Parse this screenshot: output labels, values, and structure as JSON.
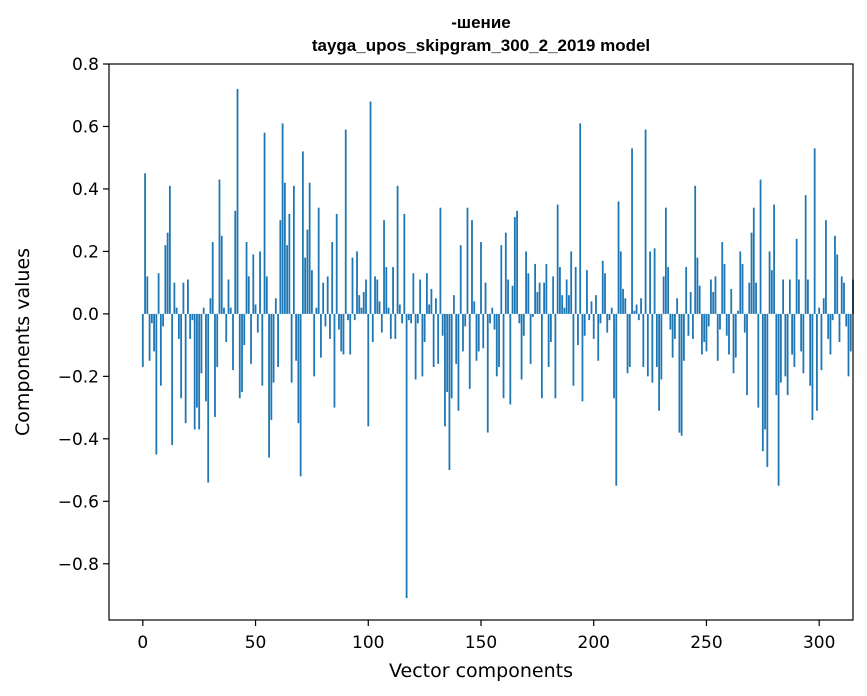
{
  "chart_data": {
    "type": "bar",
    "title_line1": "-шение",
    "title_line2": "tayga_upos_skipgram_300_2_2019 model",
    "xlabel": "Vector components",
    "ylabel": "Components values",
    "xlim": [
      -15,
      315
    ],
    "ylim": [
      -0.98,
      0.8
    ],
    "xticks": [
      0,
      50,
      100,
      150,
      200,
      250,
      300
    ],
    "xtick_labels": [
      "0",
      "50",
      "100",
      "150",
      "200",
      "250",
      "300"
    ],
    "yticks": [
      -0.8,
      -0.6,
      -0.4,
      -0.2,
      0.0,
      0.2,
      0.4,
      0.6,
      0.8
    ],
    "ytick_labels": [
      "−0.8",
      "−0.6",
      "−0.4",
      "−0.2",
      "0.0",
      "0.2",
      "0.4",
      "0.6",
      "0.8"
    ],
    "bar_color": "#1f77b4",
    "values": [
      -0.17,
      0.45,
      0.12,
      -0.15,
      -0.03,
      -0.12,
      -0.45,
      0.13,
      -0.23,
      -0.04,
      0.22,
      0.26,
      0.41,
      -0.42,
      0.1,
      0.02,
      -0.08,
      -0.27,
      0.1,
      -0.35,
      0.11,
      -0.08,
      -0.02,
      -0.37,
      -0.3,
      -0.37,
      -0.19,
      0.02,
      -0.28,
      -0.54,
      0.05,
      0.23,
      -0.33,
      -0.17,
      0.43,
      0.25,
      0.02,
      -0.09,
      0.11,
      0.02,
      -0.18,
      0.33,
      0.72,
      -0.27,
      -0.25,
      -0.1,
      0.23,
      0.12,
      -0.16,
      0.19,
      0.03,
      -0.06,
      0.2,
      -0.23,
      0.58,
      0.12,
      -0.46,
      -0.34,
      -0.22,
      0.05,
      -0.17,
      0.3,
      0.61,
      0.42,
      0.22,
      0.32,
      -0.22,
      0.41,
      -0.15,
      -0.35,
      -0.52,
      0.52,
      0.18,
      0.27,
      0.42,
      0.14,
      -0.2,
      0.02,
      0.34,
      -0.14,
      0.1,
      -0.04,
      0.12,
      -0.08,
      0.23,
      -0.3,
      0.32,
      -0.05,
      -0.12,
      -0.13,
      0.59,
      -0.02,
      -0.13,
      0.18,
      -0.02,
      0.2,
      0.06,
      0.02,
      0.07,
      0.11,
      -0.36,
      0.68,
      -0.09,
      0.12,
      0.11,
      0.04,
      -0.06,
      0.3,
      0.15,
      0.02,
      -0.08,
      0.15,
      -0.08,
      0.41,
      0.03,
      -0.03,
      0.32,
      -0.91,
      -0.02,
      -0.03,
      0.13,
      -0.21,
      -0.03,
      0.11,
      -0.2,
      -0.09,
      0.13,
      0.03,
      0.08,
      -0.17,
      0.05,
      -0.16,
      0.34,
      -0.07,
      -0.36,
      -0.25,
      -0.5,
      -0.27,
      0.06,
      -0.16,
      -0.31,
      0.22,
      -0.12,
      -0.04,
      0.34,
      -0.24,
      0.3,
      0.04,
      -0.15,
      -0.12,
      0.23,
      -0.11,
      0.1,
      -0.38,
      -0.03,
      0.02,
      -0.05,
      -0.2,
      -0.17,
      0.22,
      -0.27,
      0.26,
      0.11,
      -0.29,
      0.09,
      0.31,
      0.33,
      -0.03,
      -0.21,
      -0.07,
      0.2,
      0.13,
      -0.16,
      -0.01,
      0.16,
      0.07,
      0.1,
      -0.27,
      0.1,
      0.16,
      -0.17,
      -0.09,
      0.12,
      -0.27,
      0.35,
      0.15,
      0.06,
      0.02,
      0.11,
      0.06,
      0.2,
      -0.23,
      0.15,
      -0.1,
      0.61,
      -0.28,
      -0.07,
      0.14,
      -0.02,
      0.04,
      -0.08,
      0.06,
      -0.15,
      -0.03,
      0.17,
      0.13,
      -0.06,
      -0.02,
      0.02,
      -0.27,
      -0.55,
      0.36,
      0.2,
      0.08,
      0.05,
      -0.19,
      -0.17,
      0.53,
      0.01,
      0.03,
      -0.02,
      0.05,
      -0.17,
      0.59,
      -0.2,
      0.2,
      -0.22,
      0.21,
      -0.17,
      -0.31,
      -0.21,
      0.12,
      0.34,
      0.15,
      -0.05,
      -0.14,
      -0.08,
      0.05,
      -0.38,
      -0.39,
      -0.15,
      0.15,
      -0.07,
      0.07,
      -0.08,
      0.41,
      0.18,
      0.09,
      -0.13,
      -0.09,
      -0.12,
      -0.04,
      0.11,
      0.07,
      0.12,
      -0.15,
      -0.05,
      0.23,
      0.16,
      -0.07,
      -0.13,
      0.08,
      -0.19,
      -0.14,
      0.01,
      0.2,
      0.16,
      -0.06,
      -0.26,
      0.1,
      0.26,
      0.34,
      0.1,
      -0.3,
      0.43,
      -0.44,
      -0.37,
      -0.49,
      0.2,
      0.14,
      0.35,
      -0.26,
      -0.55,
      -0.22,
      0.11,
      -0.2,
      -0.26,
      0.11,
      -0.13,
      -0.17,
      0.24,
      0.11,
      -0.12,
      -0.19,
      0.38,
      0.11,
      -0.23,
      -0.34,
      0.53,
      -0.31,
      0.02,
      -0.18,
      0.05,
      0.3,
      -0.08,
      -0.13,
      -0.02,
      0.25,
      0.19,
      -0.09,
      0.12,
      0.1,
      -0.04,
      -0.2,
      -0.12,
      0.11
    ]
  }
}
